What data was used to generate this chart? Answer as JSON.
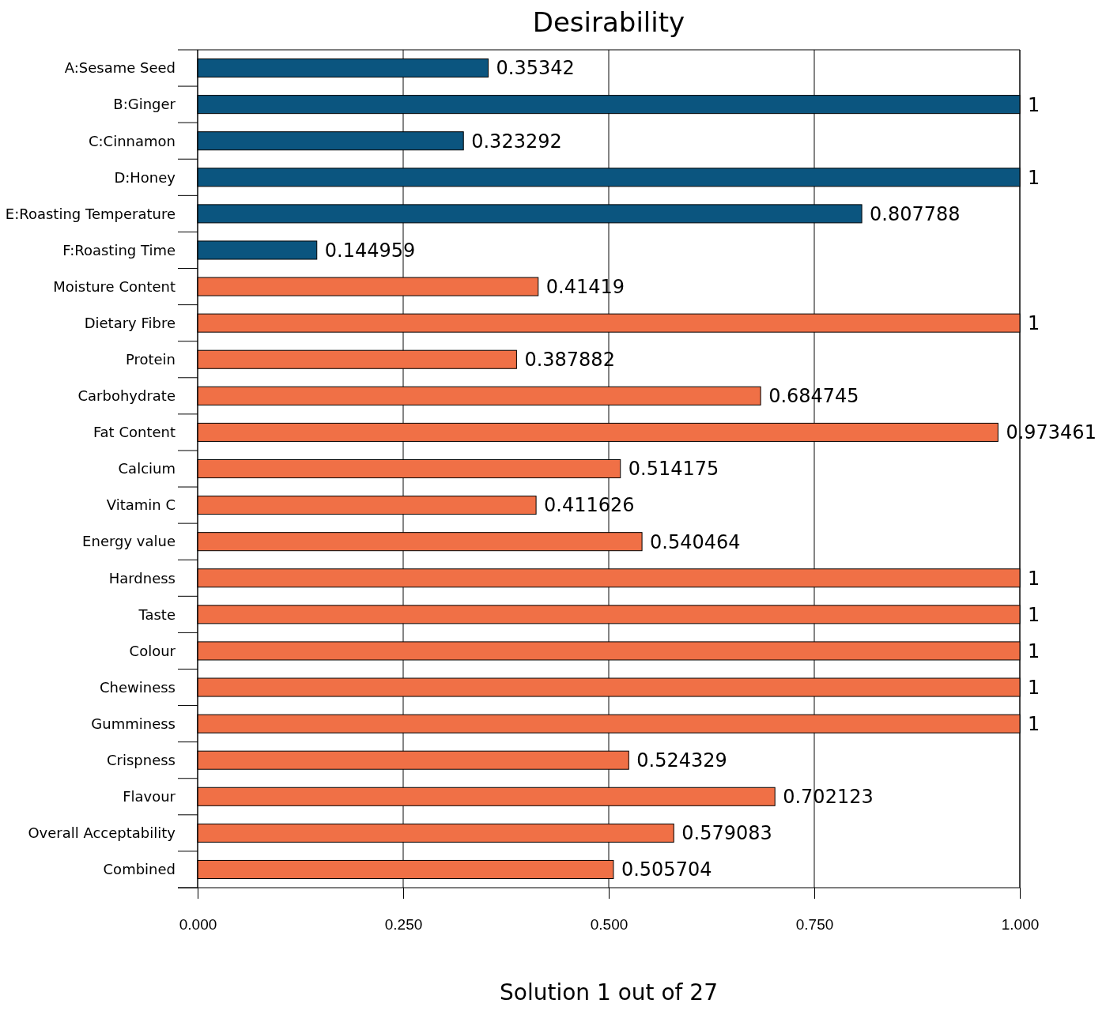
{
  "chart_data": {
    "type": "bar",
    "orientation": "horizontal",
    "title": "Desirability",
    "xlabel": "Solution 1 out of 27",
    "categories": [
      "A:Sesame Seed",
      "B:Ginger",
      "C:Cinnamon",
      "D:Honey",
      "E:Roasting Temperature",
      "F:Roasting Time",
      "Moisture Content",
      "Dietary Fibre",
      "Protein",
      "Carbohydrate",
      "Fat Content",
      "Calcium",
      "Vitamin C",
      "Energy value",
      "Hardness",
      "Taste",
      "Colour",
      "Chewiness",
      "Gumminess",
      "Crispness",
      "Flavour",
      "Overall Acceptability",
      "Combined"
    ],
    "values": [
      0.35342,
      1,
      0.323292,
      1,
      0.807788,
      0.144959,
      0.41419,
      1,
      0.387882,
      0.684745,
      0.973461,
      0.514175,
      0.411626,
      0.540464,
      1,
      1,
      1,
      1,
      1,
      0.524329,
      0.702123,
      0.579083,
      0.505704
    ],
    "colors": [
      "#0b557f",
      "#0b557f",
      "#0b557f",
      "#0b557f",
      "#0b557f",
      "#0b557f",
      "#f07046",
      "#f07046",
      "#f07046",
      "#f07046",
      "#f07046",
      "#f07046",
      "#f07046",
      "#f07046",
      "#f07046",
      "#f07046",
      "#f07046",
      "#f07046",
      "#f07046",
      "#f07046",
      "#f07046",
      "#f07046",
      "#f07046"
    ],
    "xlim": [
      0,
      1
    ],
    "xticks": [
      {
        "value": 0,
        "label": "0.000"
      },
      {
        "value": 0.25,
        "label": "0.250"
      },
      {
        "value": 0.5,
        "label": "0.500"
      },
      {
        "value": 0.75,
        "label": "0.750"
      },
      {
        "value": 1,
        "label": "1.000"
      }
    ],
    "grid": "x",
    "data_labels": true
  }
}
